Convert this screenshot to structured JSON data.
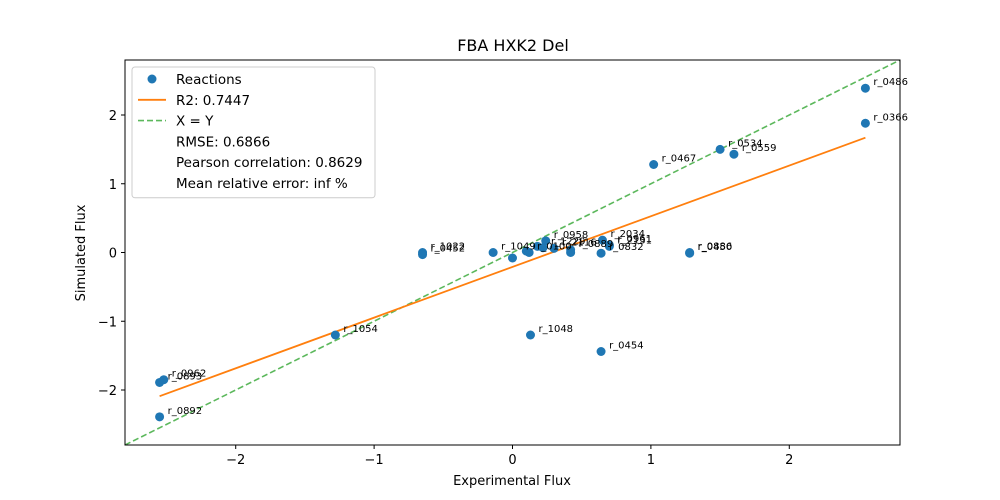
{
  "chart_data": {
    "type": "scatter",
    "title": "FBA HXK2 Del",
    "xlabel": "Experimental Flux",
    "ylabel": "Simulated Flux",
    "xlim": [
      -2.8,
      2.8
    ],
    "ylim": [
      -2.8,
      2.8
    ],
    "xticks": [
      -2,
      -1,
      0,
      1,
      2
    ],
    "yticks": [
      -2,
      -1,
      0,
      1,
      2
    ],
    "grid": false,
    "legend_position": "top-left",
    "colors": {
      "reactions": "#1f77b4",
      "fit": "#ff7f0e",
      "identity": "#5cb85c"
    },
    "legend": [
      {
        "label": "Reactions",
        "marker": "point"
      },
      {
        "label": "R2: 0.7447",
        "marker": "line"
      },
      {
        "label": "X = Y",
        "marker": "dashed"
      },
      {
        "label": "RMSE: 0.6866",
        "marker": "none"
      },
      {
        "label": "Pearson correlation: 0.8629",
        "marker": "none"
      },
      {
        "label": "Mean relative error: inf %",
        "marker": "none"
      }
    ],
    "fit_line": {
      "x": [
        -2.55,
        2.55
      ],
      "y": [
        -2.09,
        1.67
      ]
    },
    "identity_line": {
      "x": [
        -2.8,
        2.8
      ],
      "y": [
        -2.8,
        2.8
      ]
    },
    "points": [
      {
        "label": "r_0486",
        "x": 2.55,
        "y": 2.39
      },
      {
        "label": "r_0366",
        "x": 2.55,
        "y": 1.88
      },
      {
        "label": "r_0534",
        "x": 1.5,
        "y": 1.5
      },
      {
        "label": "r_0559",
        "x": 1.6,
        "y": 1.43
      },
      {
        "label": "r_0467",
        "x": 1.02,
        "y": 1.28
      },
      {
        "label": "r_0450",
        "x": 1.28,
        "y": -0.01
      },
      {
        "label": "r_0886",
        "x": 1.28,
        "y": 0.0
      },
      {
        "label": "r_2034",
        "x": 0.65,
        "y": 0.18
      },
      {
        "label": "r_0961",
        "x": 0.7,
        "y": 0.11
      },
      {
        "label": "r_2131",
        "x": 0.7,
        "y": 0.09
      },
      {
        "label": "r_0832",
        "x": 0.64,
        "y": -0.01
      },
      {
        "label": "r_0958",
        "x": 0.24,
        "y": 0.17
      },
      {
        "label": "r_1049",
        "x": -0.14,
        "y": 0.0
      },
      {
        "label": "r_0100",
        "x": 0.12,
        "y": 0.0
      },
      {
        "label": "r_1229",
        "x": 0.22,
        "y": 0.07
      },
      {
        "label": "r_2116",
        "x": 0.3,
        "y": 0.06
      },
      {
        "label": "r_0889",
        "x": 0.42,
        "y": 0.04
      },
      {
        "label": "r_1022",
        "x": -0.65,
        "y": 0.0
      },
      {
        "label": "r_0452",
        "x": -0.65,
        "y": -0.03
      },
      {
        "label": "r_1054",
        "x": -1.28,
        "y": -1.2
      },
      {
        "label": "r_1048",
        "x": 0.13,
        "y": -1.2
      },
      {
        "label": "r_0454",
        "x": 0.64,
        "y": -1.44
      },
      {
        "label": "r_0962",
        "x": -2.52,
        "y": -1.85
      },
      {
        "label": "r_0893",
        "x": -2.55,
        "y": -1.89
      },
      {
        "label": "r_0892",
        "x": -2.55,
        "y": -2.39
      },
      {
        "label": "",
        "x": 0.0,
        "y": -0.08
      },
      {
        "label": "",
        "x": 0.1,
        "y": 0.02
      },
      {
        "label": "",
        "x": 0.18,
        "y": 0.09
      },
      {
        "label": "",
        "x": 0.42,
        "y": 0.0
      }
    ]
  }
}
